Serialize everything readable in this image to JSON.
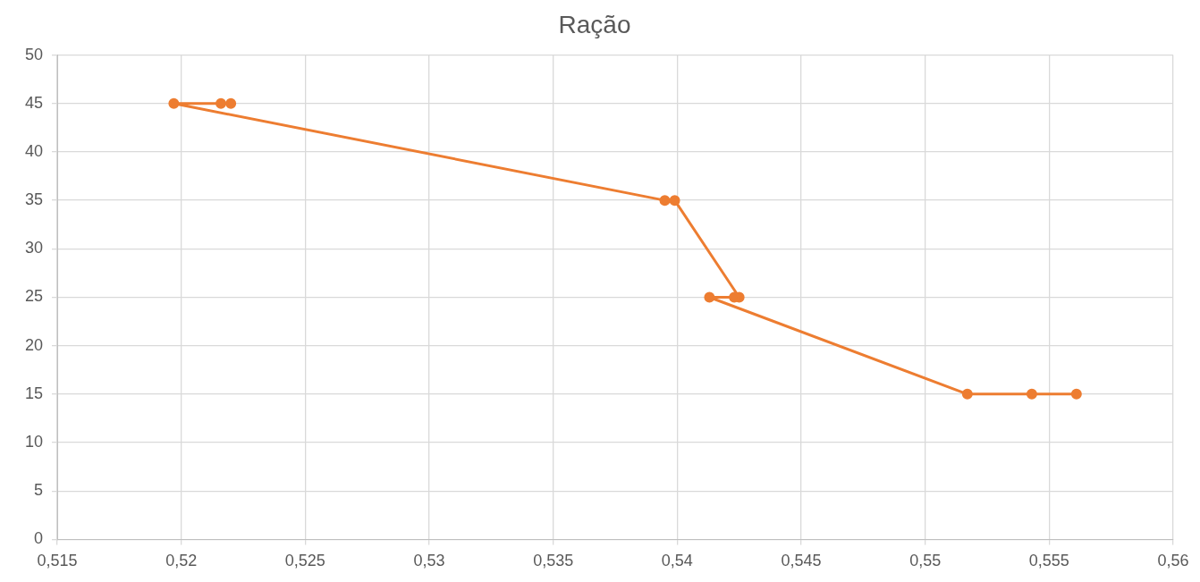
{
  "chart_data": {
    "type": "line",
    "title": "Ração",
    "series": [
      {
        "color": "#ed7d31",
        "x": [
          0.522,
          0.5216,
          0.5197,
          0.5395,
          0.5399,
          0.5425,
          0.5423,
          0.5413,
          0.5517,
          0.5543,
          0.5561
        ],
        "values": [
          45,
          45,
          45,
          35,
          35,
          25,
          25,
          25,
          15,
          15,
          15
        ]
      }
    ],
    "xlim": [
      0.515,
      0.56
    ],
    "xticks": [
      {
        "value": 0.515,
        "label": "0,515"
      },
      {
        "value": 0.52,
        "label": "0,52"
      },
      {
        "value": 0.525,
        "label": "0,525"
      },
      {
        "value": 0.53,
        "label": "0,53"
      },
      {
        "value": 0.535,
        "label": "0,535"
      },
      {
        "value": 0.54,
        "label": "0,54"
      },
      {
        "value": 0.545,
        "label": "0,545"
      },
      {
        "value": 0.55,
        "label": "0,55"
      },
      {
        "value": 0.555,
        "label": "0,555"
      },
      {
        "value": 0.56,
        "label": "0,56"
      }
    ],
    "ylim": [
      0,
      50
    ],
    "yticks": [
      0,
      5,
      10,
      15,
      20,
      25,
      30,
      35,
      40,
      45,
      50
    ],
    "grid": true,
    "legend": false,
    "marker": "circle",
    "line_style": "solid"
  }
}
